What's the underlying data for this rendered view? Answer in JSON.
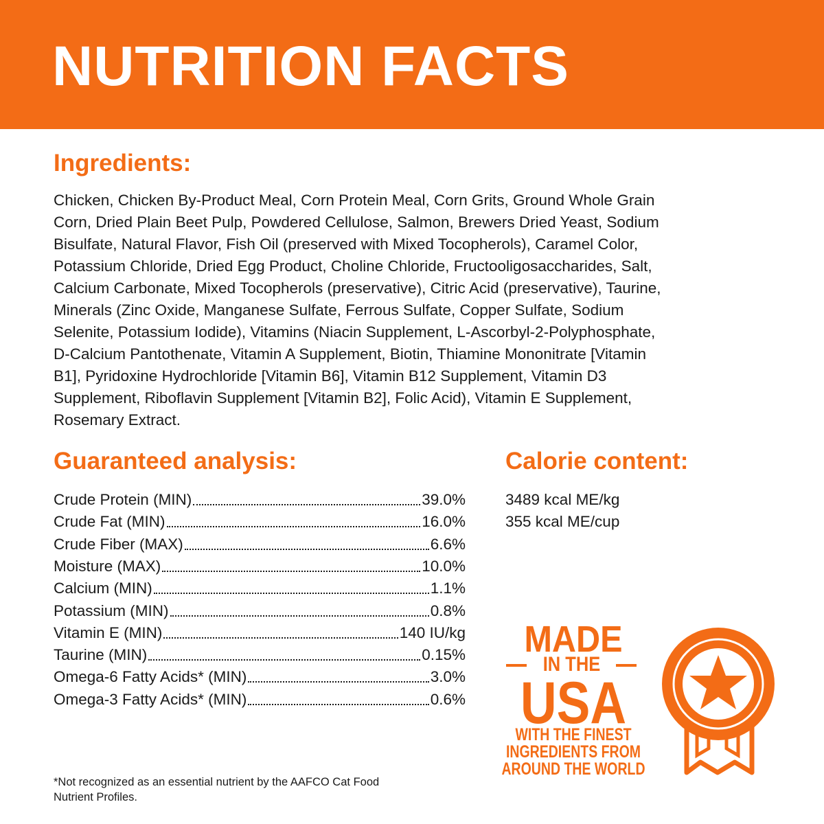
{
  "header": {
    "title": "NUTRITION FACTS"
  },
  "ingredients": {
    "heading": "Ingredients:",
    "lines": [
      "Chicken, Chicken By-Product Meal, Corn Protein Meal, Corn Grits, Ground Whole Grain",
      "Corn, Dried Plain Beet Pulp, Powdered Cellulose, Salmon, Brewers Dried Yeast, Sodium",
      "Bisulfate, Natural Flavor, Fish Oil (preserved with Mixed Tocopherols), Caramel Color,",
      "Potassium Chloride, Dried Egg Product, Choline Chloride, Fructooligosaccharides, Salt,",
      "Calcium Carbonate, Mixed Tocopherols (preservative), Citric Acid (preservative), Taurine,",
      "Minerals (Zinc Oxide, Manganese Sulfate, Ferrous Sulfate, Copper Sulfate, Sodium",
      "Selenite, Potassium Iodide), Vitamins (Niacin Supplement, L-Ascorbyl-2-Polyphosphate,",
      "D-Calcium Pantothenate, Vitamin A Supplement, Biotin, Thiamine Mononitrate [Vitamin",
      "B1], Pyridoxine Hydrochloride [Vitamin B6], Vitamin B12 Supplement, Vitamin D3",
      "Supplement, Riboflavin Supplement [Vitamin B2], Folic Acid), Vitamin E Supplement,",
      "Rosemary Extract."
    ]
  },
  "analysis": {
    "heading": "Guaranteed analysis:",
    "rows": [
      {
        "label": "Crude Protein (MIN)",
        "value": "39.0%"
      },
      {
        "label": "Crude Fat (MIN)",
        "value": "16.0%"
      },
      {
        "label": "Crude Fiber (MAX)",
        "value": "6.6%"
      },
      {
        "label": "Moisture (MAX)",
        "value": "10.0%"
      },
      {
        "label": "Calcium (MIN)",
        "value": "1.1%"
      },
      {
        "label": "Potassium (MIN)",
        "value": "0.8%"
      },
      {
        "label": "Vitamin E (MIN)",
        "value": "140 IU/kg"
      },
      {
        "label": "Taurine (MIN)",
        "value": "0.15%"
      },
      {
        "label": "Omega-6 Fatty Acids* (MIN)",
        "value": "3.0%"
      },
      {
        "label": "Omega-3 Fatty Acids* (MIN)",
        "value": "0.6%"
      }
    ]
  },
  "calories": {
    "heading": "Calorie content:",
    "lines": [
      "3489 kcal ME/kg",
      "355 kcal ME/cup"
    ]
  },
  "badge": {
    "made": "MADE",
    "in_the": "IN THE",
    "usa": "USA",
    "tagline": [
      "WITH THE FINEST",
      "INGREDIENTS FROM",
      "AROUND THE WORLD"
    ]
  },
  "footnote": {
    "lines": [
      "*Not recognized as an essential nutrient by the AAFCO Cat Food",
      "Nutrient Profiles."
    ]
  }
}
